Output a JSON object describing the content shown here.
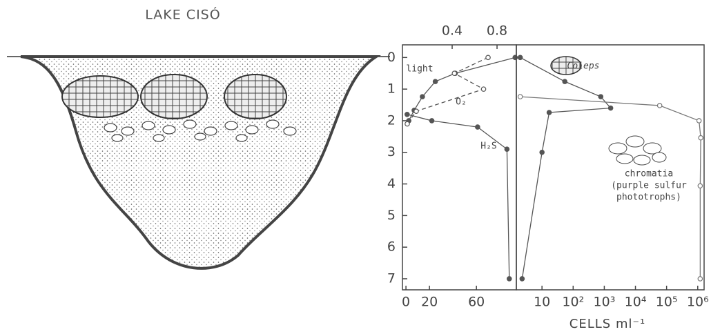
{
  "title": "LAKE CISÓ",
  "chart_data": [
    {
      "type": "line",
      "ylim": [
        7.35,
        -0.4
      ],
      "yticks": [
        0,
        1,
        2,
        3,
        4,
        5,
        6,
        7
      ],
      "xlim": [
        -3,
        94
      ],
      "xticks": [
        0,
        20,
        60
      ],
      "x2lim": [
        -0.043,
        0.972
      ],
      "x2ticks": [
        0.4,
        0.8
      ],
      "series": [
        {
          "name": "light",
          "color": "#555",
          "marker": "filled",
          "dashed": false,
          "x": [
            93,
            42,
            25,
            14,
            7,
            2.4
          ],
          "y": [
            0,
            0.5,
            0.76,
            1.24,
            1.67,
            2.0
          ]
        },
        {
          "name": "O₂",
          "color": "#555",
          "marker": "open",
          "dashed": true,
          "axis": "x2",
          "x": [
            0.72,
            0.42,
            0.68,
            0.08,
            0.0
          ],
          "y": [
            0,
            0.5,
            1.0,
            1.7,
            2.1
          ]
        },
        {
          "name": "H₂S",
          "color": "#555",
          "marker": "filled",
          "dashed": false,
          "x": [
            1,
            22,
            61,
            86,
            88
          ],
          "y": [
            1.8,
            2.0,
            2.2,
            2.9,
            7
          ]
        }
      ]
    },
    {
      "type": "line",
      "log_x": true,
      "ylim": [
        7.35,
        -0.4
      ],
      "xlim": [
        1.5,
        1600000
      ],
      "xticks": [
        10,
        {
          "value": 100,
          "label": "10²"
        },
        {
          "value": 1000,
          "label": "10³"
        },
        {
          "value": 10000,
          "label": "10⁴"
        },
        {
          "value": 100000,
          "label": "10⁵"
        },
        {
          "value": 1000000,
          "label": "10⁶"
        }
      ],
      "xlabel": "CELLS ml⁻¹",
      "series": [
        {
          "name": "Coleps",
          "color": "#555",
          "marker": "filled",
          "dashed": false,
          "x": [
            2,
            54,
            770,
            1600,
            17,
            10,
            2.3
          ],
          "y": [
            0,
            0.76,
            1.24,
            1.6,
            1.74,
            3.0,
            7
          ]
        },
        {
          "name": "chromatia",
          "note": [
            "(purple sulfur",
            "phototrophs)"
          ],
          "color": "#777",
          "marker": "open",
          "dashed": false,
          "x": [
            2,
            60000,
            1100000,
            1250000,
            1200000,
            1200000
          ],
          "y": [
            1.24,
            1.52,
            2.0,
            2.54,
            4.06,
            7
          ]
        }
      ]
    }
  ]
}
